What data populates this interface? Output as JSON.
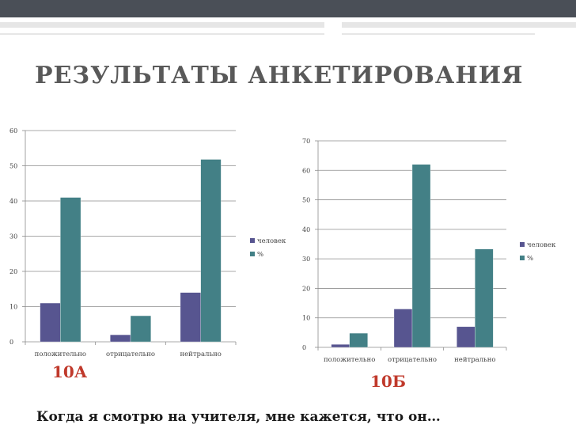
{
  "slide": {
    "title": "РЕЗУЛЬТАТЫ АНКЕТИРОВАНИЯ",
    "footer": "Когда я смотрю на учителя, мне кажется, что он…"
  },
  "colors": {
    "series_people": "#575590",
    "series_percent": "#438086",
    "caption": "#c0392b",
    "topbar": "#4a4f57"
  },
  "chart_data": [
    {
      "type": "bar",
      "caption": "10А",
      "categories": [
        "положительно",
        "отрицательно",
        "нейтрально"
      ],
      "series": [
        {
          "name": "человек",
          "values": [
            11,
            2,
            14
          ]
        },
        {
          "name": "%",
          "values": [
            41,
            7.4,
            51.8
          ]
        }
      ],
      "ylim": [
        0,
        60
      ],
      "yticks": [
        0,
        10,
        20,
        30,
        40,
        50,
        60
      ],
      "grid": true,
      "legend": "right"
    },
    {
      "type": "bar",
      "caption": "10Б",
      "categories": [
        "положительно",
        "отрицательно",
        "нейтрально"
      ],
      "series": [
        {
          "name": "человек",
          "values": [
            1,
            13,
            7
          ]
        },
        {
          "name": "%",
          "values": [
            4.8,
            62,
            33.3
          ]
        }
      ],
      "ylim": [
        0,
        70
      ],
      "yticks": [
        0,
        10,
        20,
        30,
        40,
        50,
        60,
        70
      ],
      "grid": true,
      "legend": "right"
    }
  ]
}
